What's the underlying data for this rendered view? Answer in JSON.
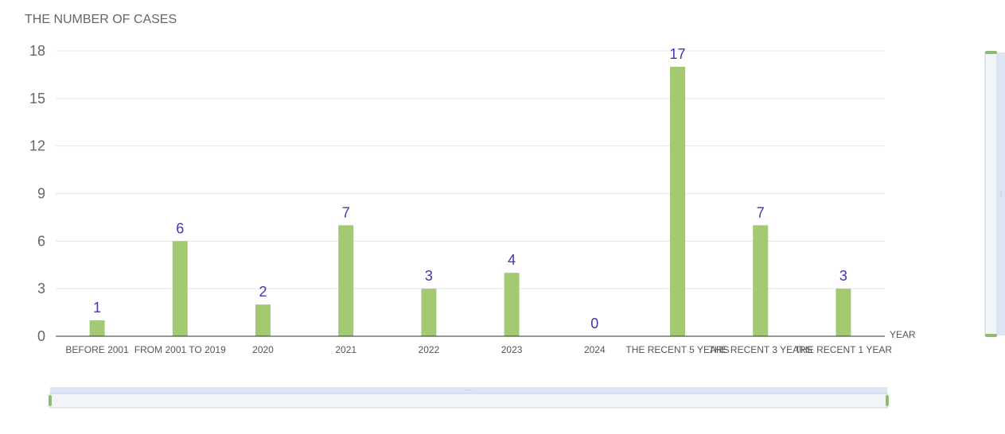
{
  "chart_data": {
    "type": "bar",
    "title": "",
    "ylabel": "THE NUMBER OF CASES",
    "xlabel": "YEAR",
    "categories": [
      "BEFORE 2001",
      "FROM 2001 TO 2019",
      "2020",
      "2021",
      "2022",
      "2023",
      "2024",
      "THE RECENT 5 YEARS",
      "THE RECENT 3 YEARS",
      "THE RECENT 1 YEAR"
    ],
    "values": [
      1,
      6,
      2,
      7,
      3,
      4,
      0,
      17,
      7,
      3
    ],
    "ylim": [
      0,
      18
    ],
    "yticks": [
      0,
      3,
      6,
      9,
      12,
      15,
      18
    ],
    "grid": true,
    "legend": "none",
    "colors": {
      "bar": "#a3c973",
      "data_label": "#3f35b5",
      "grid": "#e3e6ea",
      "axis": "#333333",
      "zoom_track": "#f1f5f8",
      "zoom_border": "#c5d1e6",
      "zoom_handle": "#8fbc72"
    }
  },
  "controls": {
    "x_zoom_slider": {
      "start_percent": 0,
      "end_percent": 100
    },
    "y_zoom_slider": {
      "start_percent": 0,
      "end_percent": 100
    }
  }
}
